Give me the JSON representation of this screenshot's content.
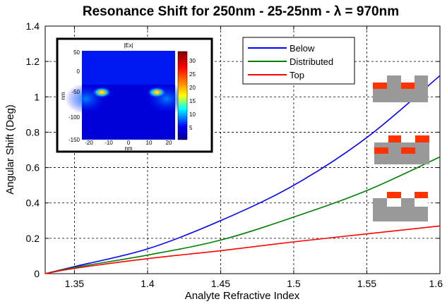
{
  "chart_data": {
    "type": "line",
    "title": "Resonance Shift for 250nm - 25-25nm - λ = 970nm",
    "xlabel": "Analyte Refractive Index",
    "ylabel": "Angular Shift (Deg)",
    "xlim": [
      1.33,
      1.6
    ],
    "ylim": [
      0,
      1.4
    ],
    "xticks": [
      "1.35",
      "1.4",
      "1.45",
      "1.5",
      "1.55",
      "1.6"
    ],
    "yticks": [
      "0",
      "0.2",
      "0.4",
      "0.6",
      "0.8",
      "1",
      "1.2",
      "1.4"
    ],
    "grid": true,
    "legend_position": "top-right",
    "series": [
      {
        "name": "Below",
        "color": "#0000ff",
        "x": [
          1.33,
          1.35,
          1.4,
          1.45,
          1.5,
          1.55,
          1.6
        ],
        "y": [
          0.0,
          0.04,
          0.14,
          0.3,
          0.5,
          0.77,
          1.12
        ]
      },
      {
        "name": "Distributed",
        "color": "#008000",
        "x": [
          1.33,
          1.35,
          1.4,
          1.45,
          1.5,
          1.55,
          1.6
        ],
        "y": [
          0.0,
          0.035,
          0.105,
          0.19,
          0.32,
          0.47,
          0.66
        ]
      },
      {
        "name": "Top",
        "color": "#ff0000",
        "x": [
          1.33,
          1.35,
          1.4,
          1.45,
          1.5,
          1.55,
          1.6
        ],
        "y": [
          0.0,
          0.03,
          0.085,
          0.13,
          0.18,
          0.225,
          0.27
        ]
      }
    ],
    "inset": {
      "title": "|Ex|",
      "xlabel": "nm",
      "ylabel": "nm",
      "xticks": [
        "-20",
        "-10",
        "0",
        "10",
        "20"
      ],
      "yticks": [
        "50",
        "0",
        "-50",
        "-100",
        "-150"
      ],
      "colorbar_ticks": [
        "30",
        "25",
        "20",
        "15",
        "10",
        "5"
      ]
    }
  }
}
